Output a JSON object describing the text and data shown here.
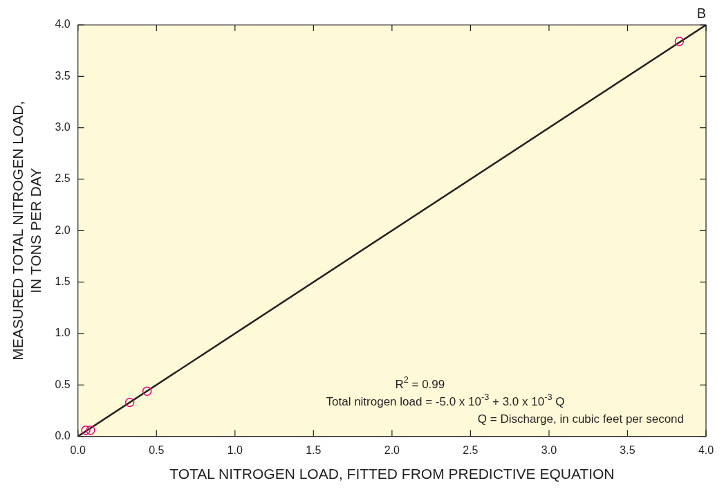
{
  "chart_data": {
    "type": "scatter",
    "title": "B",
    "xlabel": "TOTAL NITROGEN LOAD, FITTED FROM PREDICTIVE EQUATION",
    "ylabel": "MEASURED TOTAL NITROGEN LOAD,\nIN TONS PER DAY",
    "xlim": [
      0,
      4
    ],
    "ylim": [
      0,
      4
    ],
    "xticks": [
      {
        "value": 0,
        "label": "0.0"
      },
      {
        "value": 0.5,
        "label": "0.5"
      },
      {
        "value": 1,
        "label": "1.0"
      },
      {
        "value": 1.5,
        "label": "1.5"
      },
      {
        "value": 2,
        "label": "2.0"
      },
      {
        "value": 2.5,
        "label": "2.5"
      },
      {
        "value": 3,
        "label": "3.0"
      },
      {
        "value": 3.5,
        "label": "3.5"
      },
      {
        "value": 4,
        "label": "4.0"
      }
    ],
    "yticks": [
      {
        "value": 0,
        "label": "0.0"
      },
      {
        "value": 0.5,
        "label": "0.5"
      },
      {
        "value": 1,
        "label": "1.0"
      },
      {
        "value": 1.5,
        "label": "1.5"
      },
      {
        "value": 2,
        "label": "2.0"
      },
      {
        "value": 2.5,
        "label": "2.5"
      },
      {
        "value": 3,
        "label": "3.0"
      },
      {
        "value": 3.5,
        "label": "3.5"
      },
      {
        "value": 4,
        "label": "4.0"
      }
    ],
    "grid": false,
    "legend": false,
    "marker": "circle",
    "series": [
      {
        "type": "scatter",
        "color": "#e6007e",
        "x": [
          0.05,
          0.08,
          0.33,
          0.44,
          3.83
        ],
        "values": [
          0.06,
          0.06,
          0.33,
          0.44,
          3.84
        ]
      },
      {
        "type": "line",
        "color": "#231f20",
        "x": [
          0,
          4
        ],
        "values": [
          0,
          4
        ],
        "marker": "none"
      }
    ],
    "annotations": [
      "R$^{2}$ = 0.99",
      "Total nitrogen load = -5.0 x 10$^{-3}$ + 3.0 x 10$^{-3}$ Q",
      "Q = Discharge, in cubic feet per second"
    ]
  }
}
